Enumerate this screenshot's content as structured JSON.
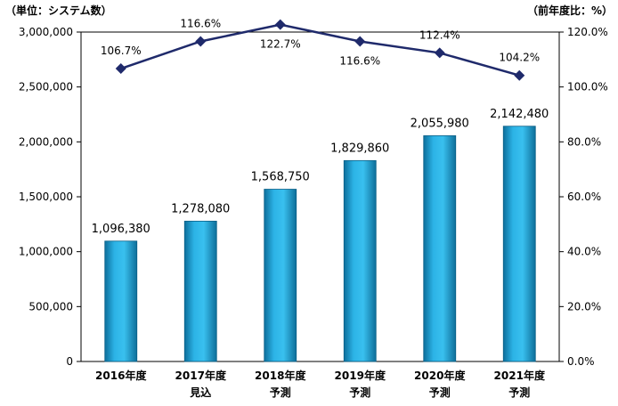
{
  "chart_data": {
    "type": "bar+line",
    "unit_left": "（単位：システム数）",
    "unit_right": "（前年度比：%）",
    "categories": [
      [
        "2016年度",
        ""
      ],
      [
        "2017年度",
        "見込"
      ],
      [
        "2018年度",
        "予測"
      ],
      [
        "2019年度",
        "予測"
      ],
      [
        "2020年度",
        "予測"
      ],
      [
        "2021年度",
        "予測"
      ]
    ],
    "bar_values": [
      1096380,
      1278080,
      1568750,
      1829860,
      2055980,
      2142480
    ],
    "bar_labels": [
      "1,096,380",
      "1,278,080",
      "1,568,750",
      "1,829,860",
      "2,055,980",
      "2,142,480"
    ],
    "line_values": [
      106.7,
      116.6,
      122.7,
      116.6,
      112.4,
      104.2
    ],
    "line_labels": [
      "106.7%",
      "116.6%",
      "122.7%",
      "116.6%",
      "112.4%",
      "104.2%"
    ],
    "line_label_position": [
      "above",
      "above",
      "below",
      "below",
      "above",
      "above"
    ],
    "y_left": {
      "range": [
        0,
        3000000
      ],
      "ticks": [
        0,
        500000,
        1000000,
        1500000,
        2000000,
        2500000,
        3000000
      ],
      "tick_labels": [
        "0",
        "500,000",
        "1,000,000",
        "1,500,000",
        "2,000,000",
        "2,500,000",
        "3,000,000"
      ]
    },
    "y_right": {
      "range": [
        0,
        120
      ],
      "ticks": [
        0,
        20,
        40,
        60,
        80,
        100,
        120
      ],
      "tick_labels": [
        "0.0%",
        "20.0%",
        "40.0%",
        "60.0%",
        "80.0%",
        "100.0%",
        "120.0%"
      ]
    },
    "grid": false,
    "colors": {
      "bar": "#1f9fd4",
      "bar_edge": "#0b5f86",
      "line": "#1f2a6b"
    }
  }
}
